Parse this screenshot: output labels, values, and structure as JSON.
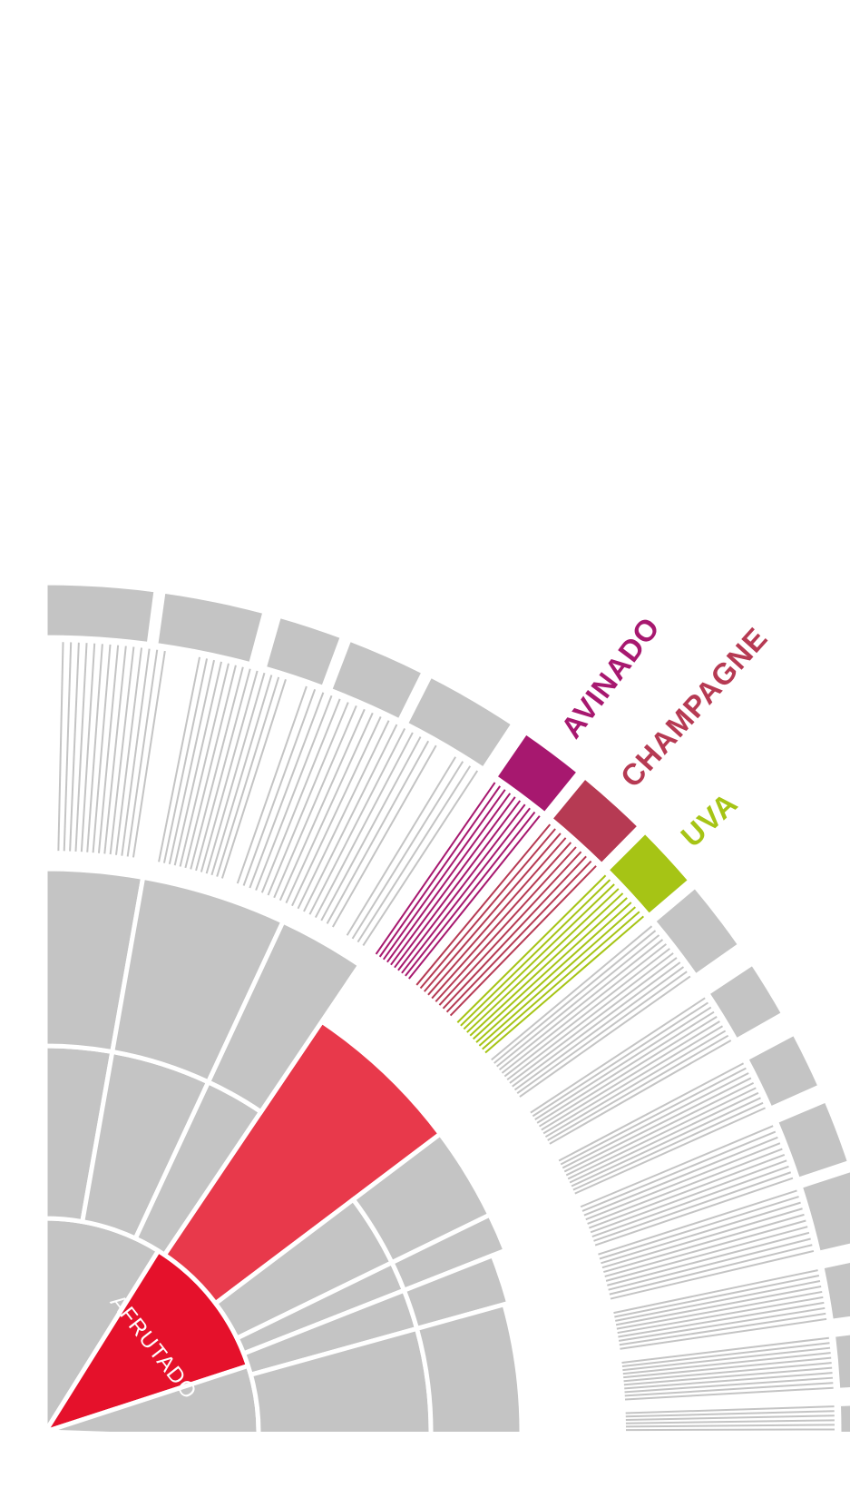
{
  "wheel": {
    "colors": {
      "neutral": "#c4c4c4",
      "gap": "#ffffff",
      "afrutado": "#e5112b",
      "afrutado_light": "#e8394b",
      "avinado": "#a7186f",
      "champagne": "#b63a53",
      "uva": "#a6c415"
    },
    "center_label": "AFRUTADO",
    "highlights": [
      {
        "label": "AVINADO",
        "color": "#a7186f"
      },
      {
        "label": "CHAMPAGNE",
        "color": "#b63a53"
      },
      {
        "label": "UVA",
        "color": "#a6c415"
      }
    ]
  }
}
